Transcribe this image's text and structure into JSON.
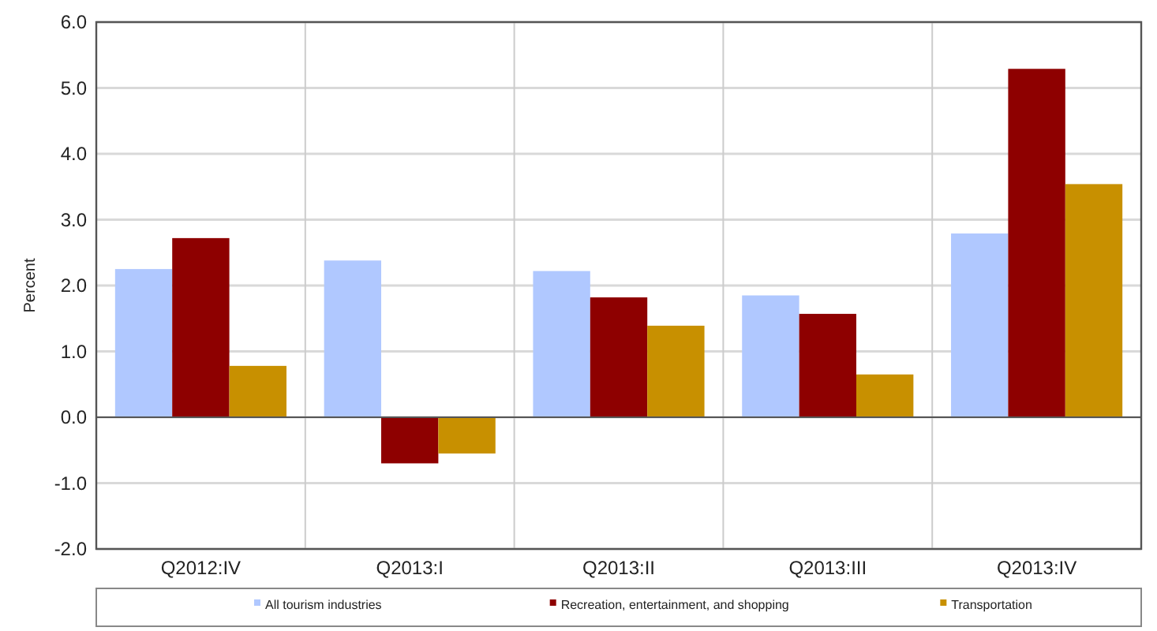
{
  "chart_data": {
    "type": "bar",
    "ylabel": "Percent",
    "categories": [
      "Q2012:IV",
      "Q2013:I",
      "Q2013:II",
      "Q2013:III",
      "Q2013:IV"
    ],
    "series": [
      {
        "name": "All tourism industries",
        "color": "#b0c8ff",
        "values": [
          2.25,
          2.38,
          2.22,
          1.85,
          2.79
        ]
      },
      {
        "name": "Recreation, entertainment, and shopping",
        "color": "#8e0000",
        "values": [
          2.72,
          -0.7,
          1.82,
          1.57,
          5.29
        ]
      },
      {
        "name": "Transportation",
        "color": "#c89000",
        "values": [
          0.78,
          -0.55,
          1.39,
          0.65,
          3.54
        ]
      }
    ],
    "ylim": [
      -2,
      6
    ],
    "yticks": [
      {
        "value": -2,
        "label": "-2.0"
      },
      {
        "value": -1,
        "label": "-1.0"
      },
      {
        "value": 0,
        "label": "0.0"
      },
      {
        "value": 1,
        "label": "1.0"
      },
      {
        "value": 2,
        "label": "2.0"
      },
      {
        "value": 3,
        "label": "3.0"
      },
      {
        "value": 4,
        "label": "4.0"
      },
      {
        "value": 5,
        "label": "5.0"
      },
      {
        "value": 6,
        "label": "6.0"
      }
    ],
    "grid": true,
    "legend": "bottom"
  }
}
